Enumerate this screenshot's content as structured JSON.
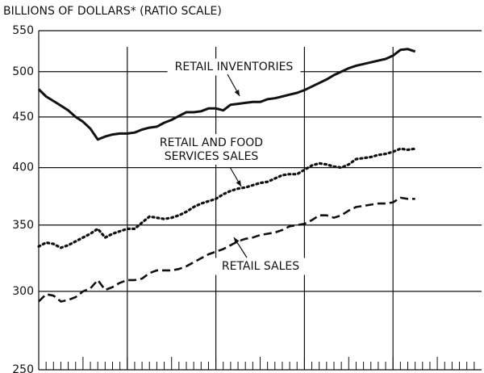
{
  "chart_data": {
    "type": "line",
    "y_axis_label": "BILLIONS OF DOLLARS* (RATIO SCALE)",
    "log_scale": true,
    "grid": true,
    "categories": [
      null,
      null,
      null,
      null,
      null,
      null,
      null,
      null,
      null,
      null,
      null,
      null,
      null,
      null,
      null,
      null,
      null,
      null,
      null,
      null,
      null,
      null,
      null,
      null,
      null,
      null,
      null,
      null,
      null,
      null,
      null,
      null,
      null,
      null,
      null,
      null,
      null,
      null,
      null,
      null,
      null,
      null,
      null,
      null,
      null,
      null,
      null,
      null,
      null,
      null,
      null,
      null,
      null,
      null,
      null,
      null,
      null,
      null,
      null,
      null
    ],
    "ylim": [
      250,
      550
    ],
    "yticks": [
      250,
      300,
      350,
      400,
      450,
      500,
      550
    ],
    "series": [
      {
        "name": "RETAIL INVENTORIES",
        "color": "#111111",
        "dash": "solid",
        "values": [
          480,
          472,
          467,
          462,
          457,
          450,
          445,
          438,
          427,
          430,
          432,
          433,
          433,
          434,
          437,
          439,
          440,
          444,
          447,
          451,
          455,
          455,
          456,
          459,
          459,
          457,
          463,
          464,
          465,
          466,
          466,
          469,
          470,
          472,
          474,
          476,
          479,
          483,
          487,
          491,
          496,
          500,
          504,
          507,
          509,
          511,
          513,
          515,
          519,
          526,
          527,
          524,
          null,
          null,
          null,
          null,
          null,
          null,
          null,
          null
        ]
      },
      {
        "name": "RETAIL AND FOOD SERVICES SALES",
        "color": "#111111",
        "dash": "dotted",
        "values": [
          333,
          336,
          335,
          332,
          334,
          337,
          340,
          343,
          347,
          340,
          343,
          345,
          347,
          347,
          352,
          357,
          356,
          355,
          356,
          358,
          361,
          365,
          368,
          370,
          372,
          376,
          379,
          381,
          382,
          384,
          386,
          387,
          390,
          393,
          394,
          394,
          398,
          402,
          404,
          403,
          401,
          400,
          403,
          408,
          409,
          410,
          412,
          413,
          415,
          418,
          417,
          418,
          null,
          null,
          null,
          null,
          null,
          null,
          null,
          null
        ]
      },
      {
        "name": "RETAIL SALES",
        "color": "#111111",
        "dash": "dashed",
        "values": [
          293,
          298,
          297,
          293,
          294,
          296,
          300,
          302,
          308,
          301,
          303,
          306,
          308,
          308,
          309,
          313,
          315,
          315,
          315,
          316,
          318,
          321,
          324,
          327,
          329,
          331,
          334,
          337,
          339,
          340,
          342,
          343,
          344,
          346,
          349,
          350,
          351,
          354,
          358,
          358,
          356,
          358,
          362,
          365,
          366,
          367,
          368,
          368,
          369,
          373,
          372,
          372,
          null,
          null,
          null,
          null,
          null,
          null,
          null,
          null
        ]
      }
    ]
  }
}
